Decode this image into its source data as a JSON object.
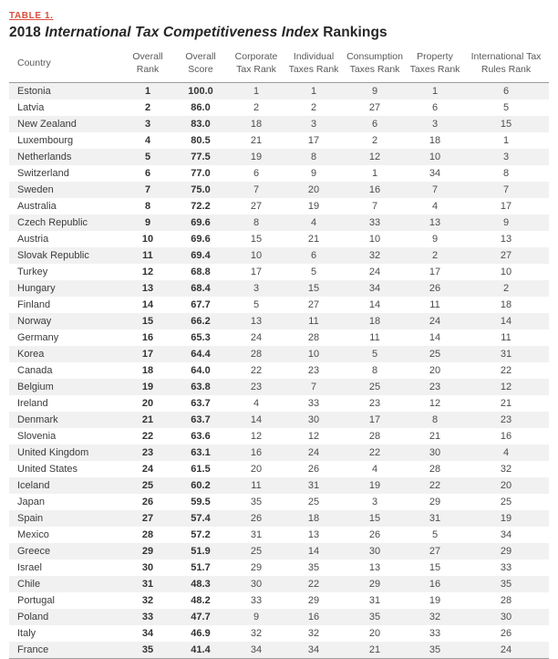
{
  "page": {
    "table_label": "TABLE 1.",
    "title": {
      "prefix": "2018 ",
      "italic": "International Tax Competitiveness Index",
      "suffix": " Rankings"
    }
  },
  "table": {
    "columns": [
      "Country",
      "Overall\nRank",
      "Overall\nScore",
      "Corporate\nTax Rank",
      "Individual\nTaxes Rank",
      "Consumption\nTaxes Rank",
      "Property\nTaxes Rank",
      "International Tax\nRules Rank"
    ],
    "rows": [
      [
        "Estonia",
        "1",
        "100.0",
        "1",
        "1",
        "9",
        "1",
        "6"
      ],
      [
        "Latvia",
        "2",
        "86.0",
        "2",
        "2",
        "27",
        "6",
        "5"
      ],
      [
        "New Zealand",
        "3",
        "83.0",
        "18",
        "3",
        "6",
        "3",
        "15"
      ],
      [
        "Luxembourg",
        "4",
        "80.5",
        "21",
        "17",
        "2",
        "18",
        "1"
      ],
      [
        "Netherlands",
        "5",
        "77.5",
        "19",
        "8",
        "12",
        "10",
        "3"
      ],
      [
        "Switzerland",
        "6",
        "77.0",
        "6",
        "9",
        "1",
        "34",
        "8"
      ],
      [
        "Sweden",
        "7",
        "75.0",
        "7",
        "20",
        "16",
        "7",
        "7"
      ],
      [
        "Australia",
        "8",
        "72.2",
        "27",
        "19",
        "7",
        "4",
        "17"
      ],
      [
        "Czech Republic",
        "9",
        "69.6",
        "8",
        "4",
        "33",
        "13",
        "9"
      ],
      [
        "Austria",
        "10",
        "69.6",
        "15",
        "21",
        "10",
        "9",
        "13"
      ],
      [
        "Slovak Republic",
        "11",
        "69.4",
        "10",
        "6",
        "32",
        "2",
        "27"
      ],
      [
        "Turkey",
        "12",
        "68.8",
        "17",
        "5",
        "24",
        "17",
        "10"
      ],
      [
        "Hungary",
        "13",
        "68.4",
        "3",
        "15",
        "34",
        "26",
        "2"
      ],
      [
        "Finland",
        "14",
        "67.7",
        "5",
        "27",
        "14",
        "11",
        "18"
      ],
      [
        "Norway",
        "15",
        "66.2",
        "13",
        "11",
        "18",
        "24",
        "14"
      ],
      [
        "Germany",
        "16",
        "65.3",
        "24",
        "28",
        "11",
        "14",
        "11"
      ],
      [
        "Korea",
        "17",
        "64.4",
        "28",
        "10",
        "5",
        "25",
        "31"
      ],
      [
        "Canada",
        "18",
        "64.0",
        "22",
        "23",
        "8",
        "20",
        "22"
      ],
      [
        "Belgium",
        "19",
        "63.8",
        "23",
        "7",
        "25",
        "23",
        "12"
      ],
      [
        "Ireland",
        "20",
        "63.7",
        "4",
        "33",
        "23",
        "12",
        "21"
      ],
      [
        "Denmark",
        "21",
        "63.7",
        "14",
        "30",
        "17",
        "8",
        "23"
      ],
      [
        "Slovenia",
        "22",
        "63.6",
        "12",
        "12",
        "28",
        "21",
        "16"
      ],
      [
        "United Kingdom",
        "23",
        "63.1",
        "16",
        "24",
        "22",
        "30",
        "4"
      ],
      [
        "United States",
        "24",
        "61.5",
        "20",
        "26",
        "4",
        "28",
        "32"
      ],
      [
        "Iceland",
        "25",
        "60.2",
        "11",
        "31",
        "19",
        "22",
        "20"
      ],
      [
        "Japan",
        "26",
        "59.5",
        "35",
        "25",
        "3",
        "29",
        "25"
      ],
      [
        "Spain",
        "27",
        "57.4",
        "26",
        "18",
        "15",
        "31",
        "19"
      ],
      [
        "Mexico",
        "28",
        "57.2",
        "31",
        "13",
        "26",
        "5",
        "34"
      ],
      [
        "Greece",
        "29",
        "51.9",
        "25",
        "14",
        "30",
        "27",
        "29"
      ],
      [
        "Israel",
        "30",
        "51.7",
        "29",
        "35",
        "13",
        "15",
        "33"
      ],
      [
        "Chile",
        "31",
        "48.3",
        "30",
        "22",
        "29",
        "16",
        "35"
      ],
      [
        "Portugal",
        "32",
        "48.2",
        "33",
        "29",
        "31",
        "19",
        "28"
      ],
      [
        "Poland",
        "33",
        "47.7",
        "9",
        "16",
        "35",
        "32",
        "30"
      ],
      [
        "Italy",
        "34",
        "46.9",
        "32",
        "32",
        "20",
        "33",
        "26"
      ],
      [
        "France",
        "35",
        "41.4",
        "34",
        "34",
        "21",
        "35",
        "24"
      ]
    ]
  }
}
